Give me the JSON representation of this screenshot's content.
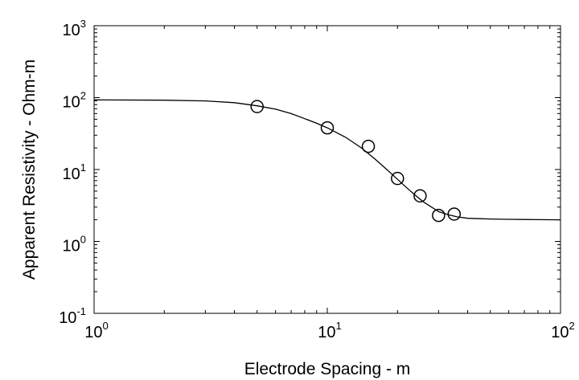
{
  "chart_data": {
    "type": "scatter",
    "title": "",
    "xlabel": "Electrode Spacing - m",
    "ylabel": "Apparent Resistivity - Ohm-m",
    "xscale": "log",
    "yscale": "log",
    "xlim": [
      1,
      100
    ],
    "ylim": [
      0.1,
      1000
    ],
    "grid": false,
    "legend": "none",
    "colors": {
      "line": "#000000",
      "marker": "#000000",
      "background": "#ffffff"
    },
    "x_ticks": [
      {
        "value": 1,
        "base": "10",
        "exp": "0"
      },
      {
        "value": 10,
        "base": "10",
        "exp": "1"
      },
      {
        "value": 100,
        "base": "10",
        "exp": "2"
      }
    ],
    "y_ticks": [
      {
        "value": 0.1,
        "base": "10",
        "exp": "-1"
      },
      {
        "value": 1,
        "base": "10",
        "exp": "0"
      },
      {
        "value": 10,
        "base": "10",
        "exp": "1"
      },
      {
        "value": 100,
        "base": "10",
        "exp": "2"
      },
      {
        "value": 1000,
        "base": "10",
        "exp": "3"
      }
    ],
    "series": [
      {
        "kind": "markers",
        "marker": "open-circle",
        "x": [
          5,
          10,
          15,
          20,
          25,
          30,
          35
        ],
        "y": [
          75,
          38,
          21,
          7.5,
          4.3,
          2.3,
          2.4
        ]
      },
      {
        "kind": "line",
        "x": [
          1,
          2,
          3,
          4,
          5,
          6,
          7,
          8,
          9,
          10,
          12,
          14,
          16,
          18,
          20,
          22,
          24,
          26,
          28,
          30,
          33,
          36,
          40,
          45,
          50,
          60,
          70,
          80,
          100
        ],
        "y": [
          93,
          92,
          90,
          85,
          77,
          69,
          60,
          51,
          44,
          38,
          28,
          20,
          14,
          10,
          7.3,
          5.5,
          4.3,
          3.5,
          3.0,
          2.6,
          2.35,
          2.2,
          2.1,
          2.07,
          2.05,
          2.03,
          2.02,
          2.01,
          2.0
        ]
      }
    ]
  }
}
